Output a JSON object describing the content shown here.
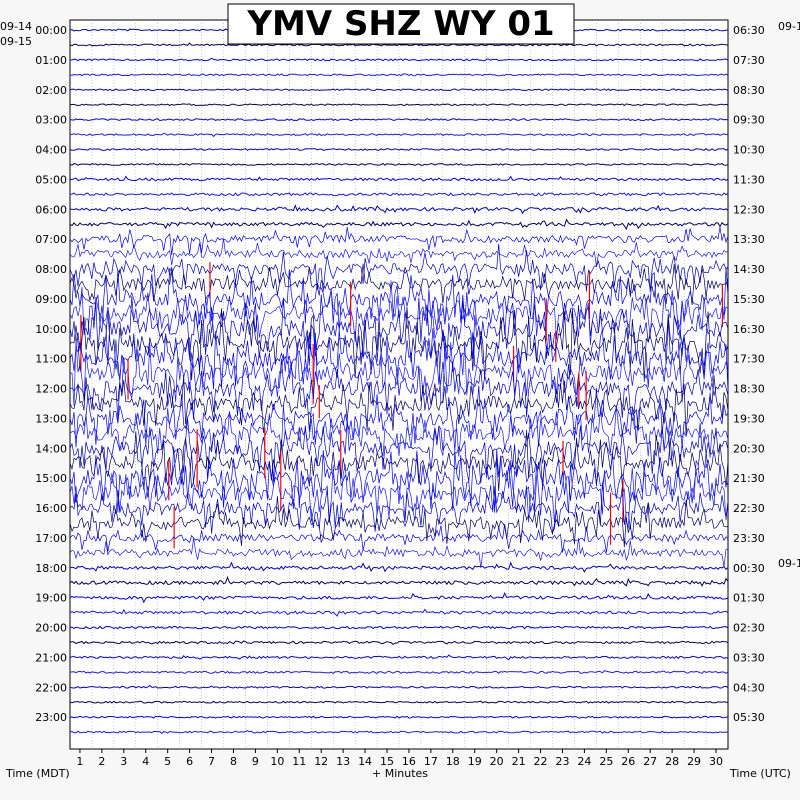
{
  "chart_data": {
    "type": "helicorder",
    "title": "YMV SHZ WY 01",
    "xlabel": "+ Minutes",
    "left_axis_title": "Time (MDT)",
    "right_axis_title": "Time (UTC)",
    "x_ticks": [
      "1",
      "2",
      "3",
      "4",
      "5",
      "6",
      "7",
      "8",
      "9",
      "10",
      "11",
      "12",
      "13",
      "14",
      "15",
      "16",
      "17",
      "18",
      "19",
      "20",
      "21",
      "22",
      "23",
      "24",
      "25",
      "26",
      "27",
      "28",
      "29",
      "30"
    ],
    "xlim": [
      0,
      30
    ],
    "left_date_labels": [
      "09-14",
      "09-15"
    ],
    "right_date_labels": [
      "09-1",
      "09-1"
    ],
    "left_time_labels": [
      "00:00",
      "01:00",
      "02:00",
      "03:00",
      "04:00",
      "05:00",
      "06:00",
      "07:00",
      "08:00",
      "09:00",
      "10:00",
      "11:00",
      "12:00",
      "13:00",
      "14:00",
      "15:00",
      "16:00",
      "17:00",
      "18:00",
      "19:00",
      "20:00",
      "21:00",
      "22:00",
      "23:00"
    ],
    "right_time_labels": [
      "06:30",
      "07:30",
      "08:30",
      "09:30",
      "10:30",
      "11:30",
      "12:30",
      "13:30",
      "14:30",
      "15:30",
      "16:30",
      "17:30",
      "18:30",
      "19:30",
      "20:30",
      "21:30",
      "22:30",
      "23:30",
      "00:30",
      "01:30",
      "02:30",
      "03:30",
      "04:30",
      "05:30"
    ],
    "trace_colors": [
      "#0000cc",
      "#000066",
      "#0000ff",
      "#1a1aff"
    ],
    "highlight_color": "#ff0000",
    "traces_per_hour": 2,
    "total_hours": 24,
    "activity_by_hour": [
      0.03,
      0.03,
      0.02,
      0.03,
      0.03,
      0.08,
      0.12,
      0.35,
      0.55,
      0.75,
      0.85,
      0.8,
      0.75,
      0.7,
      0.75,
      0.8,
      0.6,
      0.35,
      0.12,
      0.1,
      0.06,
      0.05,
      0.03,
      0.03
    ]
  }
}
